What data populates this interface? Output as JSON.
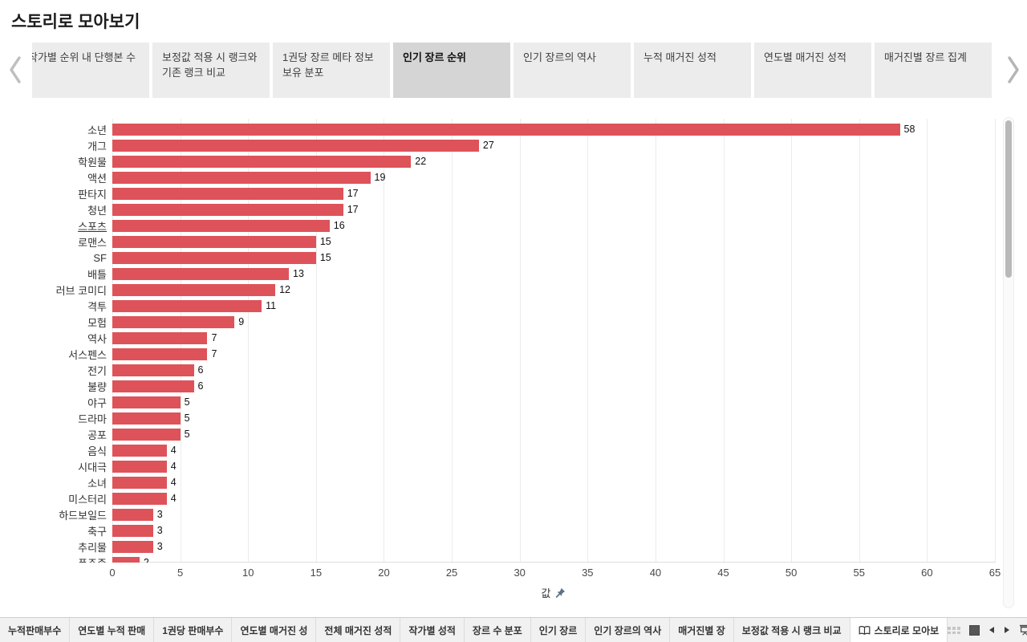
{
  "page": {
    "title": "스토리로 모아보기"
  },
  "story_nav": {
    "tabs": [
      {
        "label": "작가별 순위 내 단행본 수",
        "active": false,
        "clipped_left": true
      },
      {
        "label": "보정값 적용 시 랭크와 기존 랭크 비교",
        "active": false
      },
      {
        "label": "1권당 장르 메타 정보 보유 분포",
        "active": false
      },
      {
        "label": "인기 장르 순위",
        "active": true
      },
      {
        "label": "인기 장르의 역사",
        "active": false
      },
      {
        "label": "누적 매거진 성적",
        "active": false
      },
      {
        "label": "연도별 매거진 성적",
        "active": false
      },
      {
        "label": "매거진별 장르 집계",
        "active": false
      }
    ]
  },
  "chart_data": {
    "type": "bar",
    "orientation": "horizontal",
    "title": "인기 장르 순위",
    "categories": [
      "소년",
      "개그",
      "학원물",
      "액션",
      "판타지",
      "청년",
      "스포츠",
      "로맨스",
      "SF",
      "배틀",
      "러브 코미디",
      "격투",
      "모험",
      "역사",
      "서스펜스",
      "전기",
      "불량",
      "야구",
      "드라마",
      "공포",
      "음식",
      "시대극",
      "소녀",
      "미스터리",
      "하드보일드",
      "축구",
      "추리물",
      "폭주족"
    ],
    "values": [
      58,
      27,
      22,
      19,
      17,
      17,
      16,
      15,
      15,
      13,
      12,
      11,
      9,
      7,
      7,
      6,
      6,
      5,
      5,
      5,
      4,
      4,
      4,
      4,
      3,
      3,
      3,
      2
    ],
    "xlabel": "값",
    "x_ticks": [
      0,
      5,
      10,
      15,
      20,
      25,
      30,
      35,
      40,
      45,
      50,
      55,
      60,
      65
    ],
    "xlim": [
      0,
      65
    ],
    "grid": true,
    "value_labels": true,
    "bar_color": "#dd5359",
    "underlined_category": "스포츠",
    "last_row_partially_visible": true,
    "legend": "none"
  },
  "bottom_bar": {
    "tabs": [
      {
        "label": "누적판매부수",
        "active": false
      },
      {
        "label": "연도별 누적 판매",
        "active": false
      },
      {
        "label": "1권당 판매부수",
        "active": false
      },
      {
        "label": "연도별 매거진 성",
        "active": false
      },
      {
        "label": "전체 매거진 성적",
        "active": false
      },
      {
        "label": "작가별 성적",
        "active": false
      },
      {
        "label": "장르 수 분포",
        "active": false
      },
      {
        "label": "인기 장르",
        "active": false
      },
      {
        "label": "인기 장르의 역사",
        "active": false
      },
      {
        "label": "매거진별 장",
        "active": false
      },
      {
        "label": "보정값 적용 시 랭크 비교",
        "active": false
      },
      {
        "label": "스토리로 모아보",
        "active": true,
        "icon": "story-book-icon"
      }
    ],
    "status_icons": [
      "filmstrip-icon",
      "normal-view-icon",
      "previous-sheet-icon",
      "next-sheet-icon",
      "presentation-mode-icon"
    ]
  }
}
